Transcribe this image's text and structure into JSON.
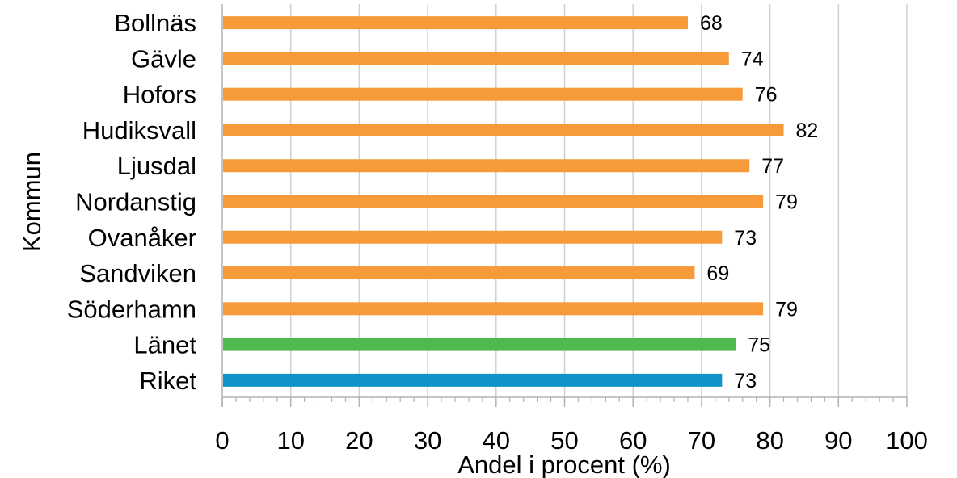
{
  "chart_data": {
    "type": "bar",
    "orientation": "horizontal",
    "categories": [
      "Bollnäs",
      "Gävle",
      "Hofors",
      "Hudiksvall",
      "Ljusdal",
      "Nordanstig",
      "Ovanåker",
      "Sandviken",
      "Söderhamn",
      "Länet",
      "Riket"
    ],
    "values": [
      68,
      74,
      76,
      82,
      77,
      79,
      73,
      69,
      79,
      75,
      73
    ],
    "data_labels": [
      "68",
      "74",
      "76",
      "82",
      "77",
      "79",
      "73",
      "69",
      "79",
      "75",
      "73"
    ],
    "bar_colors": [
      "#f79b3a",
      "#f79b3a",
      "#f79b3a",
      "#f79b3a",
      "#f79b3a",
      "#f79b3a",
      "#f79b3a",
      "#f79b3a",
      "#f79b3a",
      "#4fb84f",
      "#0f93c8"
    ],
    "xlabel": "Andel i procent (%)",
    "ylabel": "Kommun",
    "xlim": [
      0,
      100
    ],
    "x_ticks": [
      0,
      10,
      20,
      30,
      40,
      50,
      60,
      70,
      80,
      90,
      100
    ],
    "x_tick_labels": [
      "0",
      "10",
      "20",
      "30",
      "40",
      "50",
      "60",
      "70",
      "80",
      "90",
      "100"
    ],
    "minor_ticks_per_major": 5,
    "grid": "vertical major gridlines",
    "legend": "none"
  },
  "colors": {
    "grid": "#d0d0d0",
    "axis": "#b3b3b3"
  }
}
